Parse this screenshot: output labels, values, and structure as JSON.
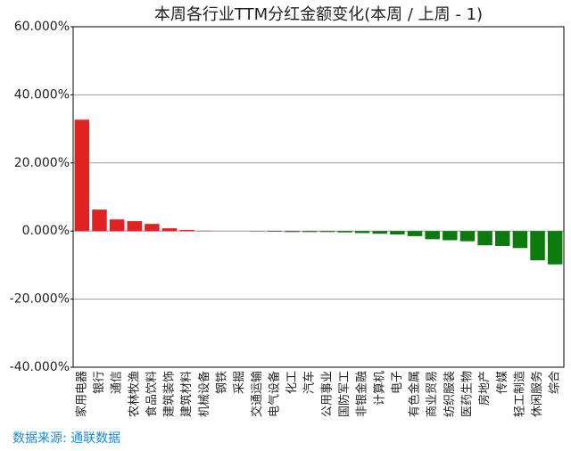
{
  "chart_data": {
    "type": "bar",
    "title": "本周各行业TTM分红金额变化(本周 / 上周 - 1)",
    "source": "数据来源: 通联数据",
    "categories": [
      "家用电器",
      "银行",
      "通信",
      "农林牧渔",
      "食品饮料",
      "建筑装饰",
      "建筑材料",
      "机械设备",
      "钢铁",
      "采掘",
      "交通运输",
      "电气设备",
      "化工",
      "汽车",
      "公用事业",
      "国防军工",
      "非银金融",
      "计算机",
      "电子",
      "有色金属",
      "商业贸易",
      "纺织服装",
      "医药生物",
      "房地产",
      "传媒",
      "轻工制造",
      "休闲服务",
      "综合"
    ],
    "values": [
      32.7,
      6.3,
      3.4,
      2.9,
      2.1,
      0.8,
      0.3,
      0.1,
      0.0,
      0.0,
      -0.1,
      -0.2,
      -0.3,
      -0.3,
      -0.3,
      -0.4,
      -0.6,
      -0.8,
      -1.0,
      -1.5,
      -2.4,
      -2.7,
      -3.0,
      -4.2,
      -4.4,
      -5.0,
      -8.6,
      -9.8
    ],
    "positive_color": "#e02222",
    "negative_color": "#0d7a0d",
    "ylim": [
      -40,
      60
    ],
    "yticks": [
      {
        "value": -40,
        "label": "-40.000%"
      },
      {
        "value": -20,
        "label": "-20.000%"
      },
      {
        "value": 0,
        "label": "0.000%"
      },
      {
        "value": 20,
        "label": "20.000%"
      },
      {
        "value": 40,
        "label": "40.000%"
      },
      {
        "value": 60,
        "label": "60.000%"
      }
    ],
    "grid": true
  }
}
